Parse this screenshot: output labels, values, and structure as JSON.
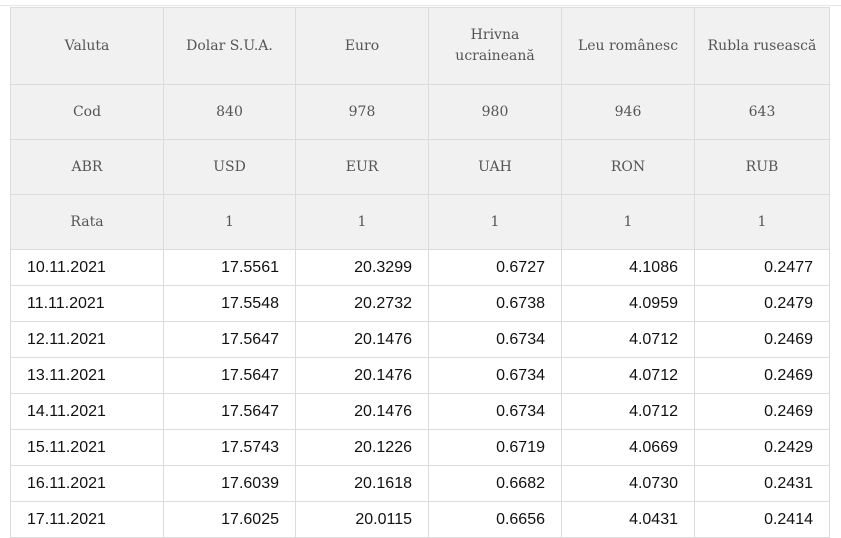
{
  "header": {
    "row_labels": {
      "valuta": "Valuta",
      "cod": "Cod",
      "abr": "ABR",
      "rata": "Rata"
    },
    "currencies": [
      {
        "name_line1": "Dolar S.U.A.",
        "name_line2": "",
        "cod": "840",
        "abr": "USD",
        "rata": "1"
      },
      {
        "name_line1": "Euro",
        "name_line2": "",
        "cod": "978",
        "abr": "EUR",
        "rata": "1"
      },
      {
        "name_line1": "Hrivna",
        "name_line2": "ucraineană",
        "cod": "980",
        "abr": "UAH",
        "rata": "1"
      },
      {
        "name_line1": "Leu românesc",
        "name_line2": "",
        "cod": "946",
        "abr": "RON",
        "rata": "1"
      },
      {
        "name_line1": "Rubla rusească",
        "name_line2": "",
        "cod": "643",
        "abr": "RUB",
        "rata": "1"
      }
    ]
  },
  "rows": [
    {
      "date": "10.11.2021",
      "values": [
        "17.5561",
        "20.3299",
        "0.6727",
        "4.1086",
        "0.2477"
      ]
    },
    {
      "date": "11.11.2021",
      "values": [
        "17.5548",
        "20.2732",
        "0.6738",
        "4.0959",
        "0.2479"
      ]
    },
    {
      "date": "12.11.2021",
      "values": [
        "17.5647",
        "20.1476",
        "0.6734",
        "4.0712",
        "0.2469"
      ]
    },
    {
      "date": "13.11.2021",
      "values": [
        "17.5647",
        "20.1476",
        "0.6734",
        "4.0712",
        "0.2469"
      ]
    },
    {
      "date": "14.11.2021",
      "values": [
        "17.5647",
        "20.1476",
        "0.6734",
        "4.0712",
        "0.2469"
      ]
    },
    {
      "date": "15.11.2021",
      "values": [
        "17.5743",
        "20.1226",
        "0.6719",
        "4.0669",
        "0.2429"
      ]
    },
    {
      "date": "16.11.2021",
      "values": [
        "17.6039",
        "20.1618",
        "0.6682",
        "4.0730",
        "0.2431"
      ]
    },
    {
      "date": "17.11.2021",
      "values": [
        "17.6025",
        "20.0115",
        "0.6656",
        "4.0431",
        "0.2414"
      ]
    }
  ]
}
